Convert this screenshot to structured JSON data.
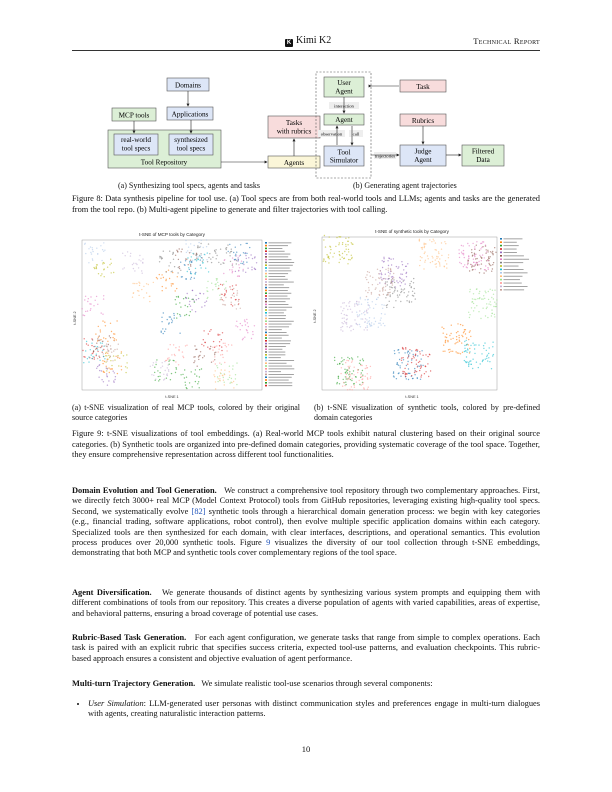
{
  "header": {
    "logo_letter": "K",
    "brand": "Kimi K2",
    "report_label": "Technical Report"
  },
  "figure8": {
    "diagram_a": {
      "domains": "Domains",
      "mcp_tools": "MCP tools",
      "applications": "Applications",
      "real_world_specs": [
        "real-world",
        "tool specs"
      ],
      "synth_specs": [
        "synthesized",
        "tool specs"
      ],
      "tool_repository": "Tool Repository",
      "tasks_rubrics": [
        "Tasks",
        "with rubrics"
      ],
      "agents": "Agents"
    },
    "diagram_b": {
      "user_agent": [
        "User",
        "Agent"
      ],
      "task": "Task",
      "interaction": "interaction",
      "agent": "Agent",
      "rubrics": "Rubrics",
      "observation": "observation",
      "call": "call",
      "tool_simulator": [
        "Tool",
        "Simulator"
      ],
      "trajectories": "trajectories",
      "judge_agent": [
        "Judge",
        "Agent"
      ],
      "filtered_data": [
        "Filtered",
        "Data"
      ]
    },
    "subcaption_a": "(a) Synthesizing tool specs, agents and tasks",
    "subcaption_b": "(b) Generating agent trajectories",
    "caption": "Figure 8: Data synthesis pipeline for tool use. (a) Tool specs are from both real-world tools and LLMs; agents and tasks are the generated from the tool repo. (b) Multi-agent pipeline to generate and filter trajectories with tool calling."
  },
  "figure9": {
    "plot_a": {
      "title": "t-SNE of MCP tools by Category",
      "xlabel": "t-SNE 1",
      "ylabel": "t-SNE 2",
      "legend_count": 52
    },
    "plot_b": {
      "title": "t-SNE of synthetic tools by Category",
      "xlabel": "t-SNE 1",
      "ylabel": "t-SNE 2",
      "legend_count": 16
    },
    "subcaption_a": "(a) t-SNE visualization of real MCP tools, colored by their original source categories",
    "subcaption_b": "(b) t-SNE visualization of synthetic tools, colored by pre-defined domain categories",
    "caption": "Figure 9: t-SNE visualizations of tool embeddings. (a) Real-world MCP tools exhibit natural clustering based on their original source categories. (b) Synthetic tools are organized into pre-defined domain categories, providing systematic coverage of the tool space. Together, they ensure comprehensive representation across different tool functionalities."
  },
  "body": {
    "p1_head": "Domain Evolution and Tool Generation.",
    "p1_a": "We construct a comprehensive tool repository through two complementary approaches. First, we directly fetch 3000+ real MCP (Model Context Protocol) tools from GitHub repositories, leveraging existing high-quality tool specs. Second, we systematically evolve ",
    "p1_ref": "[82]",
    "p1_b": " synthetic tools through a hierarchical domain generation process: we begin with key categories (e.g., financial trading, software applications, robot control), then evolve multiple specific application domains within each category. Specialized tools are then synthesized for each domain, with clear interfaces, descriptions, and operational semantics. This evolution process produces over 20,000 synthetic tools. Figure ",
    "p1_fig": "9",
    "p1_c": " visualizes the diversity of our tool collection through t-SNE embeddings, demonstrating that both MCP and synthetic tools cover complementary regions of the tool space.",
    "p2_head": "Agent Diversification.",
    "p2_text": "We generate thousands of distinct agents by synthesizing various system prompts and equipping them with different combinations of tools from our repository. This creates a diverse population of agents with varied capabilities, areas of expertise, and behavioral patterns, ensuring a broad coverage of potential use cases.",
    "p3_head": "Rubric-Based Task Generation.",
    "p3_text": "For each agent configuration, we generate tasks that range from simple to complex operations. Each task is paired with an explicit rubric that specifies success criteria, expected tool-use patterns, and evaluation checkpoints. This rubric-based approach ensures a consistent and objective evaluation of agent performance.",
    "p4_head": "Multi-turn Trajectory Generation.",
    "p4_text": "We simulate realistic tool-use scenarios through several components:",
    "bullet1_head": "User Simulation",
    "bullet1_text": ": LLM-generated user personas with distinct communication styles and preferences engage in multi-turn dialogues with agents, creating naturalistic interaction patterns."
  },
  "page_number": "10",
  "colors": {
    "blue_box": "#dde6f7",
    "green_box": "#dcefd6",
    "red_box": "#f8dcdc",
    "yellow_box": "#fbf6d8"
  }
}
